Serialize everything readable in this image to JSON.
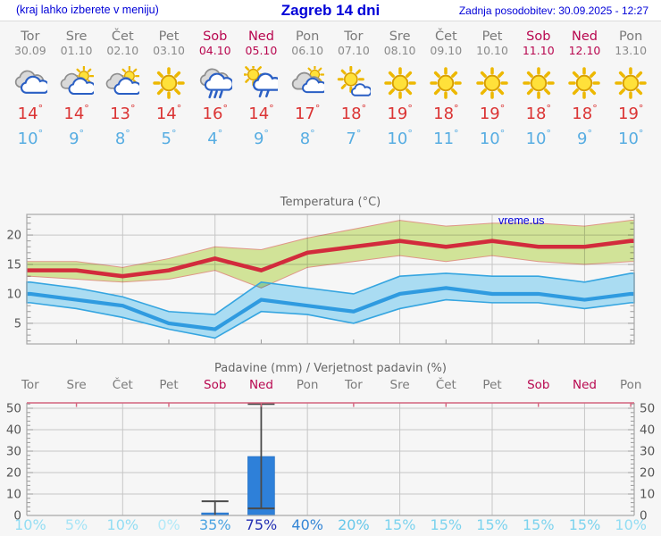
{
  "header": {
    "left_note": "(kraj lahko izberete v meniju)",
    "title": "Zagreb 14 dni",
    "updated": "Zadnja posodobitev: 30.09.2025 - 12:27"
  },
  "watermark": "vreme.us",
  "days": [
    {
      "name": "Tor",
      "date": "30.09",
      "weekend": false,
      "icon": "clouds",
      "tmax": "14",
      "tmin": "10",
      "prob": "10%",
      "prob_color": "#93ddf3"
    },
    {
      "name": "Sre",
      "date": "01.10",
      "weekend": false,
      "icon": "sun-cloud",
      "tmax": "14",
      "tmin": "9",
      "prob": "5%",
      "prob_color": "#a6e4f6"
    },
    {
      "name": "Čet",
      "date": "02.10",
      "weekend": false,
      "icon": "sun-cloud",
      "tmax": "13",
      "tmin": "8",
      "prob": "10%",
      "prob_color": "#93ddf3"
    },
    {
      "name": "Pet",
      "date": "03.10",
      "weekend": false,
      "icon": "sun",
      "tmax": "14",
      "tmin": "5",
      "prob": "0%",
      "prob_color": "#b2e9f8"
    },
    {
      "name": "Sob",
      "date": "04.10",
      "weekend": true,
      "icon": "rain",
      "tmax": "16",
      "tmin": "4",
      "prob": "35%",
      "prob_color": "#49a2e1"
    },
    {
      "name": "Ned",
      "date": "05.10",
      "weekend": true,
      "icon": "sun-rain",
      "tmax": "14",
      "tmin": "9",
      "prob": "75%",
      "prob_color": "#2430b3"
    },
    {
      "name": "Pon",
      "date": "06.10",
      "weekend": false,
      "icon": "cloud-sun",
      "tmax": "17",
      "tmin": "8",
      "prob": "40%",
      "prob_color": "#3486d6"
    },
    {
      "name": "Tor",
      "date": "07.10",
      "weekend": false,
      "icon": "sun-small-cloud",
      "tmax": "18",
      "tmin": "7",
      "prob": "20%",
      "prob_color": "#66c7ea"
    },
    {
      "name": "Sre",
      "date": "08.10",
      "weekend": false,
      "icon": "sun",
      "tmax": "19",
      "tmin": "10",
      "prob": "15%",
      "prob_color": "#7cd3ee"
    },
    {
      "name": "Čet",
      "date": "09.10",
      "weekend": false,
      "icon": "sun",
      "tmax": "18",
      "tmin": "11",
      "prob": "15%",
      "prob_color": "#7cd3ee"
    },
    {
      "name": "Pet",
      "date": "10.10",
      "weekend": false,
      "icon": "sun",
      "tmax": "19",
      "tmin": "10",
      "prob": "15%",
      "prob_color": "#7cd3ee"
    },
    {
      "name": "Sob",
      "date": "11.10",
      "weekend": true,
      "icon": "sun",
      "tmax": "18",
      "tmin": "10",
      "prob": "15%",
      "prob_color": "#7cd3ee"
    },
    {
      "name": "Ned",
      "date": "12.10",
      "weekend": true,
      "icon": "sun",
      "tmax": "18",
      "tmin": "9",
      "prob": "15%",
      "prob_color": "#7cd3ee"
    },
    {
      "name": "Pon",
      "date": "13.10",
      "weekend": false,
      "icon": "sun",
      "tmax": "19",
      "tmin": "10",
      "prob": "10%",
      "prob_color": "#93ddf3"
    }
  ],
  "chart_data": [
    {
      "type": "area-line",
      "title": "Temperatura (°C)",
      "categories": [
        "Tor",
        "Sre",
        "Čet",
        "Pet",
        "Sob",
        "Ned",
        "Pon",
        "Tor",
        "Sre",
        "Čet",
        "Pet",
        "Sob",
        "Ned",
        "Pon"
      ],
      "series": [
        {
          "name": "max_temp",
          "color": "#d22b3c",
          "values": [
            14,
            14,
            13,
            14,
            16,
            14,
            17,
            18,
            19,
            18,
            19,
            18,
            18,
            19
          ]
        },
        {
          "name": "max_range_upper",
          "values": [
            15.5,
            15.5,
            14.5,
            16,
            18,
            17.5,
            19.5,
            21,
            22.5,
            21.5,
            22,
            22,
            21.5,
            22.5
          ]
        },
        {
          "name": "max_range_lower",
          "values": [
            13,
            12.5,
            12,
            12.5,
            14,
            11,
            14.5,
            15.5,
            16.5,
            15.5,
            16.5,
            15.5,
            15,
            15.5
          ]
        },
        {
          "name": "min_temp",
          "color": "#2f9be0",
          "values": [
            10,
            9,
            8,
            5,
            4,
            9,
            8,
            7,
            10,
            11,
            10,
            10,
            9,
            10
          ]
        },
        {
          "name": "min_range_upper",
          "values": [
            12,
            11,
            9.5,
            7,
            6.5,
            12,
            11,
            10,
            13,
            13.5,
            13,
            13,
            12,
            13.5
          ]
        },
        {
          "name": "min_range_lower",
          "values": [
            8.5,
            7.5,
            6,
            4,
            2.5,
            7,
            6.5,
            5,
            7.5,
            9,
            8.5,
            8.5,
            7.5,
            8.5
          ]
        }
      ],
      "ylim": [
        1.5,
        23.5
      ],
      "yticks": [
        5,
        10,
        15,
        20
      ],
      "grid": true,
      "band_colors": {
        "max_fill": "#d9ec9e",
        "max_edge": "#e89c8c",
        "min_fill": "#aadcf2",
        "min_edge": "#35a5e0"
      }
    },
    {
      "type": "bar",
      "title": "Padavine (mm) / Verjetnost padavin (%)",
      "categories": [
        "Tor",
        "Sre",
        "Čet",
        "Pet",
        "Sob",
        "Ned",
        "Pon",
        "Tor",
        "Sre",
        "Čet",
        "Pet",
        "Sob",
        "Ned",
        "Pon"
      ],
      "values_mm": [
        0,
        0,
        0,
        0,
        1.2,
        27.5,
        0,
        0,
        0,
        0,
        0,
        0,
        0,
        0
      ],
      "whiskers": [
        null,
        null,
        null,
        null,
        {
          "lo": 0,
          "hi": 6.6
        },
        {
          "lo": 3.3,
          "hi": 52
        },
        null,
        null,
        null,
        null,
        null,
        null,
        null,
        null
      ],
      "probabilities_pct": [
        10,
        5,
        10,
        0,
        35,
        75,
        40,
        20,
        15,
        15,
        15,
        15,
        15,
        10
      ],
      "ylim": [
        0,
        52.5
      ],
      "yticks": [
        0,
        10,
        20,
        30,
        40,
        50
      ],
      "grid": true,
      "bar_color": "#2e80d9"
    }
  ],
  "colors": {
    "header_text": "#0000d8",
    "weekday": "#7a7a7a",
    "weekend": "#b8074f",
    "tmax_text": "#db3434",
    "tmin_text": "#57ade2",
    "plot_border": "#a8a8a8",
    "gridline": "#c6c6c6",
    "precip_top_border": "#d4647e",
    "axis_label": "#555555"
  }
}
